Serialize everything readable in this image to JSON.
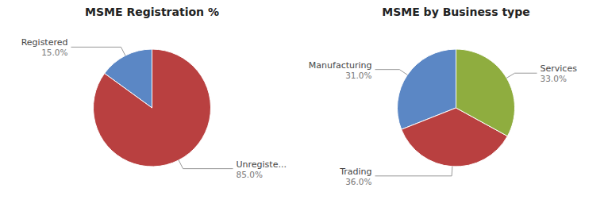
{
  "chart_data": [
    {
      "type": "pie",
      "title": "MSME Registration %",
      "categories": [
        "Registered",
        "Unregiste..."
      ],
      "values": [
        15.0,
        85.0
      ],
      "value_labels": [
        "15.0%",
        "85.0%"
      ],
      "colors": [
        "#5b87c5",
        "#b94040"
      ],
      "data_labels": true
    },
    {
      "type": "pie",
      "title": "MSME by Business type",
      "categories": [
        "Manufacturing",
        "Trading",
        "Services"
      ],
      "values": [
        31.0,
        36.0,
        33.0
      ],
      "value_labels": [
        "31.0%",
        "36.0%",
        "33.0%"
      ],
      "colors": [
        "#5b87c5",
        "#b94040",
        "#8fad3f"
      ],
      "data_labels": true
    }
  ]
}
